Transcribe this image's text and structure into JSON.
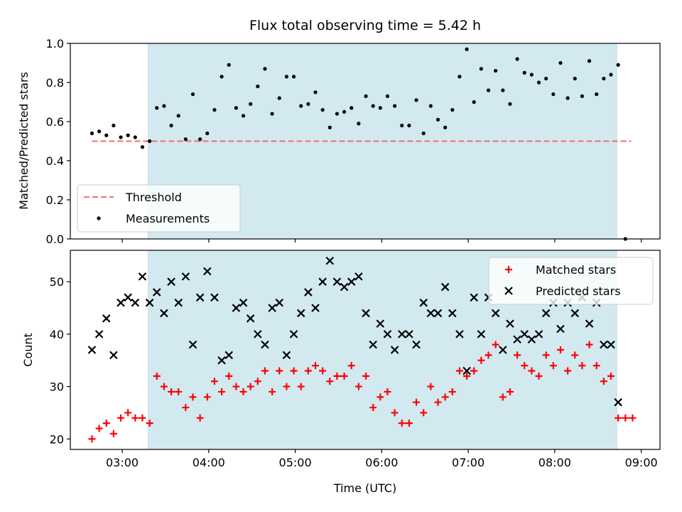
{
  "chart_data": [
    {
      "type": "scatter",
      "title": "Flux total observing time = 5.42 h",
      "xlabel": "",
      "ylabel": "Matched/Predicted stars",
      "ylim": [
        0,
        1.0
      ],
      "yticks": [
        "0.0",
        "0.2",
        "0.4",
        "0.6",
        "0.8",
        "1.0"
      ],
      "xticks": [
        "03:00",
        "04:00",
        "05:00",
        "06:00",
        "07:00",
        "08:00",
        "09:00"
      ],
      "grid": false,
      "legend_position": "lower-left",
      "observing_window": {
        "start": "03:18",
        "end": "08:43",
        "color": "#d3e9f0"
      },
      "threshold": {
        "name": "Threshold",
        "value": 0.5,
        "from": "02:39",
        "to": "08:53",
        "color": "#f07c7c"
      },
      "series": [
        {
          "name": "Measurements",
          "color": "#000000",
          "x": [
            "02:39",
            "02:44",
            "02:49",
            "02:54",
            "02:59",
            "03:04",
            "03:09",
            "03:14",
            "03:19",
            "03:24",
            "03:29",
            "03:34",
            "03:39",
            "03:44",
            "03:49",
            "03:54",
            "03:59",
            "04:04",
            "04:09",
            "04:14",
            "04:19",
            "04:24",
            "04:29",
            "04:34",
            "04:39",
            "04:44",
            "04:49",
            "04:54",
            "04:59",
            "05:04",
            "05:09",
            "05:14",
            "05:19",
            "05:24",
            "05:29",
            "05:34",
            "05:39",
            "05:44",
            "05:49",
            "05:54",
            "05:59",
            "06:04",
            "06:09",
            "06:14",
            "06:19",
            "06:24",
            "06:29",
            "06:34",
            "06:39",
            "06:44",
            "06:49",
            "06:54",
            "06:59",
            "07:04",
            "07:09",
            "07:14",
            "07:19",
            "07:24",
            "07:29",
            "07:34",
            "07:39",
            "07:44",
            "07:49",
            "07:54",
            "07:59",
            "08:04",
            "08:09",
            "08:14",
            "08:19",
            "08:24",
            "08:29",
            "08:34",
            "08:39",
            "08:44",
            "08:49"
          ],
          "y": [
            0.54,
            0.55,
            0.53,
            0.58,
            0.52,
            0.53,
            0.52,
            0.47,
            0.5,
            0.67,
            0.68,
            0.58,
            0.63,
            0.51,
            0.74,
            0.51,
            0.54,
            0.66,
            0.83,
            0.89,
            0.67,
            0.63,
            0.69,
            0.78,
            0.87,
            0.64,
            0.72,
            0.83,
            0.83,
            0.68,
            0.69,
            0.75,
            0.66,
            0.57,
            0.64,
            0.65,
            0.67,
            0.59,
            0.73,
            0.68,
            0.67,
            0.73,
            0.68,
            0.58,
            0.58,
            0.71,
            0.54,
            0.68,
            0.61,
            0.57,
            0.66,
            0.83,
            0.97,
            0.7,
            0.87,
            0.76,
            0.86,
            0.76,
            0.69,
            0.92,
            0.85,
            0.84,
            0.8,
            0.82,
            0.74,
            0.9,
            0.72,
            0.82,
            0.73,
            0.91,
            0.74,
            0.82,
            0.84,
            0.89,
            0.0
          ]
        }
      ]
    },
    {
      "type": "scatter",
      "title": "",
      "xlabel": "Time (UTC)",
      "ylabel": "Count",
      "ylim": [
        18,
        56
      ],
      "yticks": [
        "20",
        "30",
        "40",
        "50"
      ],
      "xticks": [
        "03:00",
        "04:00",
        "05:00",
        "06:00",
        "07:00",
        "08:00",
        "09:00"
      ],
      "grid": false,
      "legend_position": "upper-right",
      "observing_window": {
        "start": "03:18",
        "end": "08:43",
        "color": "#d3e9f0"
      },
      "series": [
        {
          "name": "Matched stars",
          "color": "#ff0000",
          "marker": "+",
          "x": [
            "02:39",
            "02:44",
            "02:49",
            "02:54",
            "02:59",
            "03:04",
            "03:09",
            "03:14",
            "03:19",
            "03:24",
            "03:29",
            "03:34",
            "03:39",
            "03:44",
            "03:49",
            "03:54",
            "03:59",
            "04:04",
            "04:09",
            "04:14",
            "04:19",
            "04:24",
            "04:29",
            "04:34",
            "04:39",
            "04:44",
            "04:49",
            "04:54",
            "04:59",
            "05:04",
            "05:09",
            "05:14",
            "05:19",
            "05:24",
            "05:29",
            "05:34",
            "05:39",
            "05:44",
            "05:49",
            "05:54",
            "05:59",
            "06:04",
            "06:09",
            "06:14",
            "06:19",
            "06:24",
            "06:29",
            "06:34",
            "06:39",
            "06:44",
            "06:49",
            "06:54",
            "06:59",
            "07:04",
            "07:09",
            "07:14",
            "07:19",
            "07:24",
            "07:29",
            "07:34",
            "07:39",
            "07:44",
            "07:49",
            "07:54",
            "07:59",
            "08:04",
            "08:09",
            "08:14",
            "08:19",
            "08:24",
            "08:29",
            "08:34",
            "08:39",
            "08:44",
            "08:49",
            "08:54"
          ],
          "y": [
            20,
            22,
            23,
            21,
            24,
            25,
            24,
            24,
            23,
            32,
            30,
            29,
            29,
            26,
            28,
            24,
            28,
            31,
            29,
            32,
            30,
            29,
            30,
            31,
            33,
            29,
            33,
            30,
            33,
            30,
            33,
            34,
            33,
            31,
            32,
            32,
            34,
            30,
            32,
            26,
            28,
            29,
            25,
            23,
            23,
            27,
            25,
            30,
            27,
            28,
            29,
            33,
            32,
            33,
            35,
            36,
            38,
            28,
            29,
            36,
            34,
            33,
            32,
            36,
            34,
            37,
            33,
            36,
            34,
            38,
            34,
            31,
            32,
            24,
            24,
            24
          ]
        },
        {
          "name": "Predicted stars",
          "color": "#000000",
          "marker": "x",
          "x": [
            "02:39",
            "02:44",
            "02:49",
            "02:54",
            "02:59",
            "03:04",
            "03:09",
            "03:14",
            "03:19",
            "03:24",
            "03:29",
            "03:34",
            "03:39",
            "03:44",
            "03:49",
            "03:54",
            "03:59",
            "04:04",
            "04:09",
            "04:14",
            "04:19",
            "04:24",
            "04:29",
            "04:34",
            "04:39",
            "04:44",
            "04:49",
            "04:54",
            "04:59",
            "05:04",
            "05:09",
            "05:14",
            "05:19",
            "05:24",
            "05:29",
            "05:34",
            "05:39",
            "05:44",
            "05:49",
            "05:54",
            "05:59",
            "06:04",
            "06:09",
            "06:14",
            "06:19",
            "06:24",
            "06:29",
            "06:34",
            "06:39",
            "06:44",
            "06:49",
            "06:54",
            "06:59",
            "07:04",
            "07:09",
            "07:14",
            "07:19",
            "07:24",
            "07:29",
            "07:34",
            "07:39",
            "07:44",
            "07:49",
            "07:54",
            "07:59",
            "08:04",
            "08:09",
            "08:14",
            "08:19",
            "08:24",
            "08:29",
            "08:34",
            "08:39",
            "08:44"
          ],
          "y": [
            37,
            40,
            43,
            36,
            46,
            47,
            46,
            51,
            46,
            48,
            44,
            50,
            46,
            51,
            38,
            47,
            52,
            47,
            35,
            36,
            45,
            46,
            43,
            40,
            38,
            45,
            46,
            36,
            40,
            44,
            48,
            45,
            50,
            54,
            50,
            49,
            50,
            51,
            44,
            38,
            42,
            40,
            37,
            40,
            40,
            38,
            46,
            44,
            44,
            49,
            44,
            40,
            33,
            47,
            40,
            47,
            44,
            37,
            42,
            39,
            40,
            39,
            40,
            44,
            46,
            41,
            46,
            44,
            47,
            42,
            46,
            38,
            38,
            27
          ]
        }
      ]
    }
  ]
}
